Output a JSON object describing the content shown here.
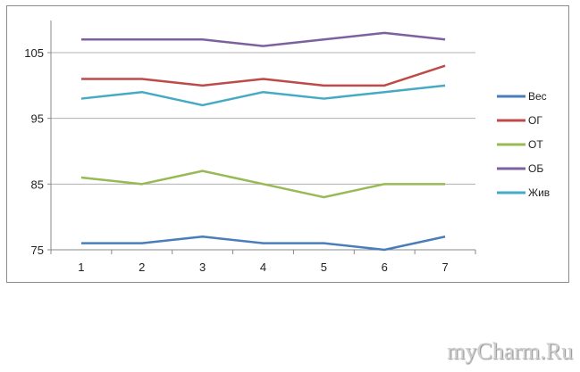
{
  "chart_data": {
    "type": "line",
    "title": "",
    "xlabel": "",
    "ylabel": "",
    "x": [
      1,
      2,
      3,
      4,
      5,
      6,
      7
    ],
    "yticks": [
      75,
      85,
      95,
      105
    ],
    "ylim": [
      75,
      111
    ],
    "grid": true,
    "legend": "right",
    "series": [
      {
        "name": "Вес",
        "color": "#4a7ebb",
        "values": [
          76,
          76,
          77,
          76,
          76,
          75,
          77
        ]
      },
      {
        "name": "ОГ",
        "color": "#be4b48",
        "values": [
          101,
          101,
          100,
          101,
          100,
          100,
          103
        ]
      },
      {
        "name": "ОТ",
        "color": "#98b954",
        "values": [
          86,
          85,
          87,
          85,
          83,
          85,
          85
        ]
      },
      {
        "name": "ОБ",
        "color": "#7d60a0",
        "values": [
          107,
          107,
          107,
          106,
          107,
          108,
          107
        ]
      },
      {
        "name": "Жив",
        "color": "#46aac5",
        "values": [
          98,
          99,
          97,
          99,
          98,
          99,
          100
        ]
      }
    ]
  },
  "watermark": "myCharm.Ru"
}
